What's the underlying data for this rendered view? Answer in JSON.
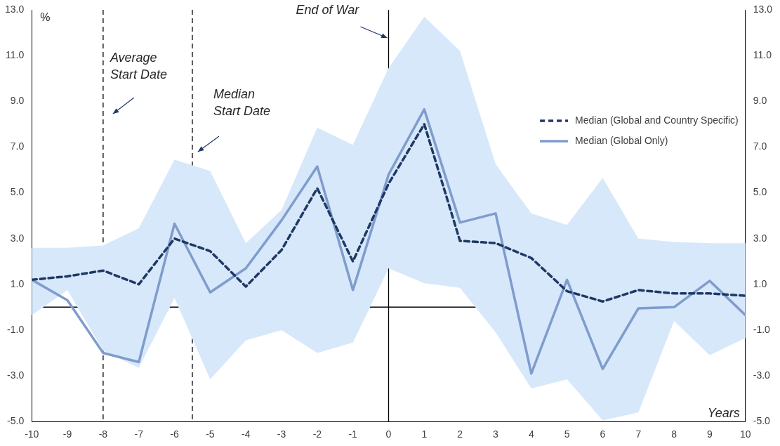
{
  "chart_data": {
    "type": "line",
    "xlabel": "Years",
    "ylabel": "%",
    "x": [
      -10,
      -9,
      -8,
      -7,
      -6,
      -5,
      -4,
      -3,
      -2,
      -1,
      0,
      1,
      2,
      3,
      4,
      5,
      6,
      7,
      8,
      9,
      10
    ],
    "series": [
      {
        "name": "Median (Global and Country Specific)",
        "color": "#1f3864",
        "line_style": "dashed",
        "values": [
          1.2,
          1.35,
          1.6,
          1.0,
          3.0,
          2.45,
          0.9,
          2.5,
          5.2,
          2.0,
          5.4,
          8.0,
          2.9,
          2.8,
          2.15,
          0.7,
          0.25,
          0.75,
          0.6,
          0.6,
          0.5
        ],
        "lower": [
          -0.35,
          0.75,
          -1.9,
          -2.65,
          0.4,
          -3.15,
          -1.45,
          -1.0,
          -2.0,
          -1.55,
          1.7,
          1.05,
          0.85,
          -1.1,
          -3.55,
          -3.15,
          -4.95,
          -4.6,
          -0.6,
          -2.1,
          -1.35
        ],
        "upper": [
          2.6,
          2.6,
          2.7,
          3.45,
          6.45,
          5.95,
          2.8,
          4.25,
          7.85,
          7.1,
          10.45,
          12.7,
          11.2,
          6.25,
          4.1,
          3.6,
          5.65,
          3.0,
          2.85,
          2.8,
          2.8
        ]
      },
      {
        "name": "Median (Global Only)",
        "color": "#7f9ccc",
        "line_style": "solid",
        "values": [
          1.2,
          0.3,
          -2.0,
          -2.4,
          3.65,
          0.65,
          1.7,
          3.8,
          6.15,
          0.75,
          5.8,
          8.65,
          3.7,
          4.1,
          -2.9,
          1.2,
          -2.7,
          -0.05,
          0.0,
          1.15,
          -0.35
        ]
      }
    ],
    "xlim": [
      -10,
      10
    ],
    "xticks": [
      -10,
      -9,
      -8,
      -7,
      -6,
      -5,
      -4,
      -3,
      -2,
      -1,
      0,
      1,
      2,
      3,
      4,
      5,
      6,
      7,
      8,
      9,
      10
    ],
    "ylim": [
      -5,
      13
    ],
    "yticks": [
      {
        "value": -5,
        "label": "-5.0"
      },
      {
        "value": -3,
        "label": "-3.0"
      },
      {
        "value": -1,
        "label": "-1.0"
      },
      {
        "value": 1,
        "label": "1.0"
      },
      {
        "value": 3,
        "label": "3.0"
      },
      {
        "value": 5,
        "label": "5.0"
      },
      {
        "value": 7,
        "label": "7.0"
      },
      {
        "value": 9,
        "label": "9.0"
      },
      {
        "value": 11,
        "label": "11.0"
      },
      {
        "value": 13,
        "label": "13.0"
      }
    ],
    "y2lim": [
      -5,
      13
    ],
    "y2ticks": [
      {
        "value": -5,
        "label": "-5.0"
      },
      {
        "value": -3,
        "label": "-3.0"
      },
      {
        "value": -1,
        "label": "-1.0"
      },
      {
        "value": 1,
        "label": "1.0"
      },
      {
        "value": 3,
        "label": "3.0"
      },
      {
        "value": 5,
        "label": "5.0"
      },
      {
        "value": 7,
        "label": "7.0"
      },
      {
        "value": 9,
        "label": "9.0"
      },
      {
        "value": 11,
        "label": "11.0"
      },
      {
        "value": 13,
        "label": "13.0"
      }
    ],
    "ref_lines": [
      {
        "axis": "y",
        "value": 0,
        "color": "#000000",
        "line_style": "solid"
      },
      {
        "axis": "x",
        "value": -8,
        "label": "Average Start Date",
        "color": "#000000",
        "line_style": "dashed"
      },
      {
        "axis": "x",
        "value": -5.5,
        "label": "Median Start Date",
        "color": "#000000",
        "line_style": "dashed"
      },
      {
        "axis": "x",
        "value": 0,
        "label": "End of War",
        "color": "#000000",
        "line_style": "solid"
      }
    ],
    "grid": false,
    "legend": "top right",
    "marker": "none"
  }
}
